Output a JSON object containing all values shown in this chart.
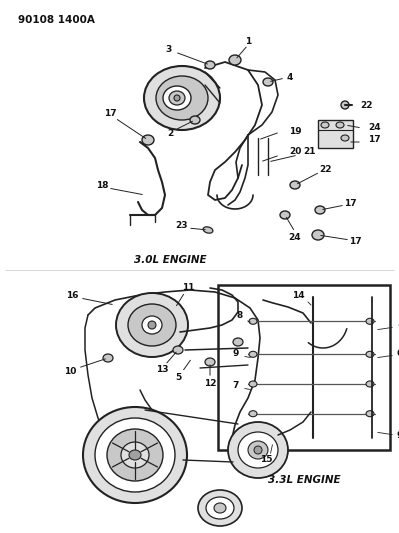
{
  "title": "90108 1400A",
  "background_color": "#ffffff",
  "fig_width": 3.99,
  "fig_height": 5.33,
  "dpi": 100,
  "label_3ol": "3.0L ENGINE",
  "label_33l": "3.3L ENGINE",
  "text_color": "#111111",
  "diagram_color": "#222222",
  "gray1": "#c8c8c8",
  "gray2": "#e0e0e0",
  "gray3": "#a0a0a0"
}
